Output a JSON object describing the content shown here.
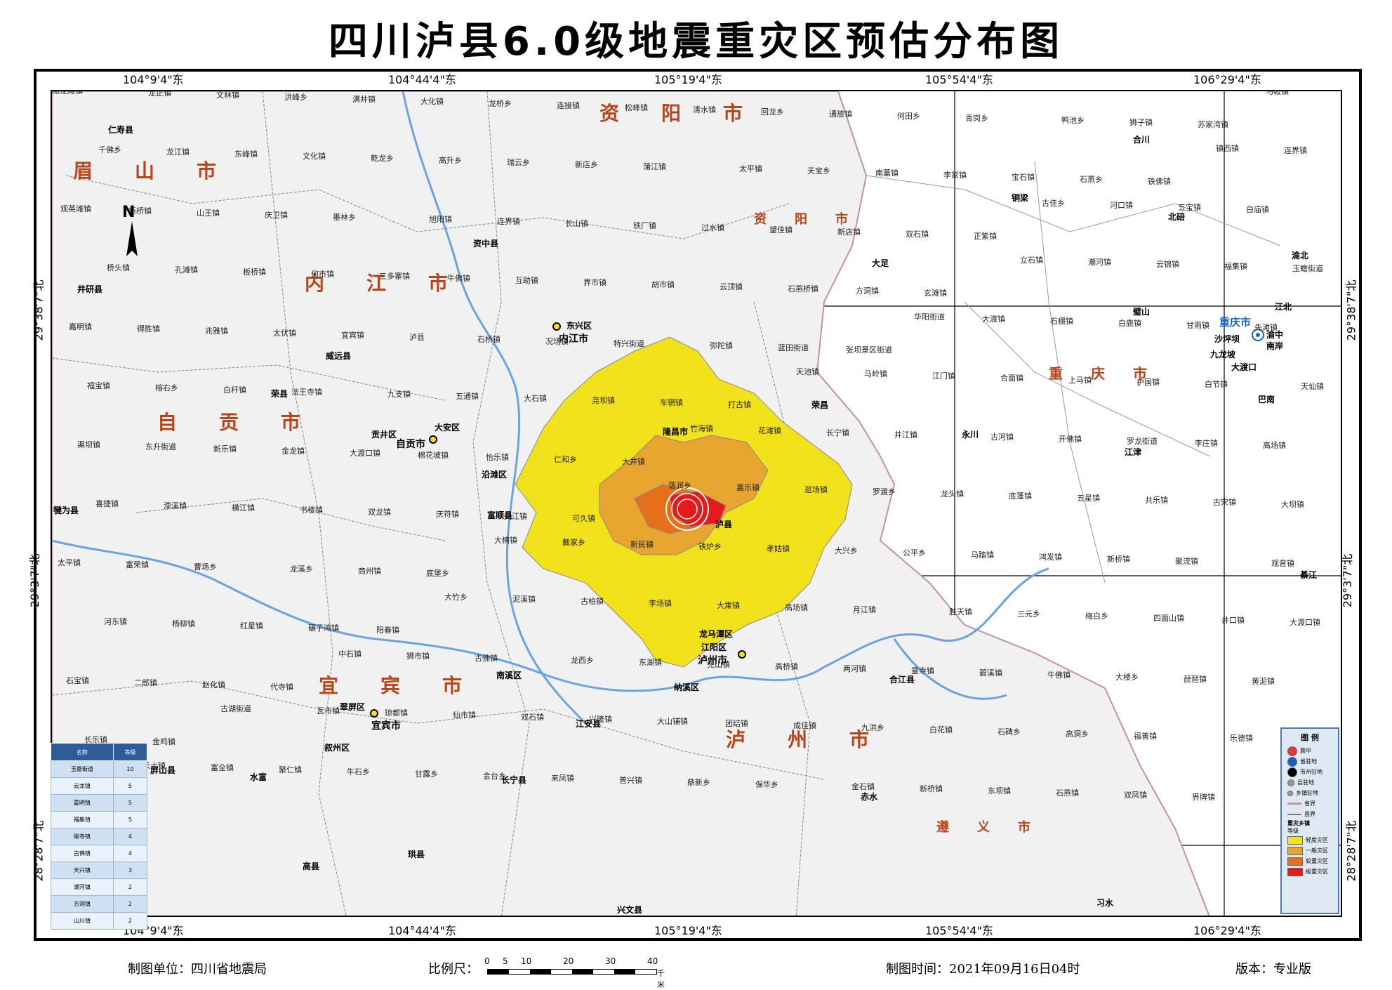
{
  "title": "四川泸县6.0级地震重灾区预估分布图",
  "coords": {
    "top": [
      "104°9'4\"东",
      "104°44'4\"东",
      "105°19'4\"东",
      "105°54'4\"东",
      "106°29'4\"东"
    ],
    "bottom": [
      "104°9'4\"东",
      "104°44'4\"东",
      "105°19'4\"东",
      "105°54'4\"东",
      "106°29'4\"东"
    ],
    "left": [
      "29°38'7\"北",
      "29°3'7\"北",
      "28°28'7\"北"
    ],
    "right": [
      "29°38'7\"北",
      "29°3'7\"北",
      "28°28'7\"北"
    ]
  },
  "north": "N",
  "regions": [
    "眉山市",
    "资阳市",
    "内江市",
    "自贡市",
    "宜宾市",
    "泸州市",
    "重庆市",
    "遵义市",
    "资阳市"
  ],
  "cities": [
    "内江市",
    "东兴区",
    "资中县",
    "威远县",
    "荣县",
    "自贡市",
    "贡井区",
    "大安区",
    "沿滩区",
    "富顺县",
    "隆昌市",
    "泸县",
    "龙马潭区",
    "江阳区",
    "泸州市",
    "纳溪区",
    "宜宾市",
    "翠屏区",
    "叙州区",
    "南溪区",
    "江安县",
    "长宁县",
    "高县",
    "珙县",
    "兴文县",
    "屏山县",
    "水富",
    "合江县",
    "赤水",
    "习水",
    "荣昌",
    "永川",
    "大足",
    "铜梁",
    "合川",
    "北碚",
    "璧山",
    "江津",
    "綦江",
    "巴南",
    "渝北",
    "江北",
    "渝中",
    "南岸",
    "沙坪坝",
    "九龙坡",
    "大渡口",
    "重庆市",
    "犍为县",
    "井研县",
    "仁寿县"
  ],
  "places": [
    "黑龙滩镇",
    "龙正镇",
    "文林镇",
    "洪峰乡",
    "满井镇",
    "大化镇",
    "龙桥乡",
    "连接镇",
    "松峰镇",
    "清水镇",
    "回龙乡",
    "通旅镇",
    "何田乡",
    "青岗乡",
    "鸭池乡",
    "狮子镇",
    "苏家湾镇",
    "马鞍镇",
    "千佛乡",
    "龙江镇",
    "东峰镇",
    "文化镇",
    "乾龙乡",
    "高升乡",
    "瑞云乡",
    "新店乡",
    "蒲江镇",
    "太平镇",
    "天宝乡",
    "南薰镇",
    "李家镇",
    "宝石镇",
    "石燕乡",
    "铁佛镇",
    "镇西镇",
    "连界镇",
    "观英滩镇",
    "新桥镇",
    "山王镇",
    "庆卫镇",
    "墨林乡",
    "旭阳镇",
    "连界镇",
    "长山镇",
    "铁厂镇",
    "过水镇",
    "望佳镇",
    "新店镇",
    "双石镇",
    "正紫镇",
    "古佳乡",
    "河口镇",
    "五宝镇",
    "白庙镇",
    "桥头镇",
    "孔滩镇",
    "板桥镇",
    "何市镇",
    "三多寨镇",
    "牛佛镇",
    "互助镇",
    "界市镇",
    "胡市镇",
    "云顶镇",
    "石燕桥镇",
    "方洞镇",
    "玄滩镇",
    "立石镇",
    "潮河镇",
    "云锦镇",
    "福集镇",
    "玉蟾街道",
    "嘉明镇",
    "得胜镇",
    "兆雅镇",
    "太伏镇",
    "宜宾镇",
    "泸县",
    "石桥镇",
    "况场镇",
    "特兴街道",
    "弥陀镇",
    "蓝田街道",
    "张坝景区街道",
    "华阳街道",
    "大渡镇",
    "石棚镇",
    "白鹿镇",
    "甘雨镇",
    "先滩镇",
    "福宝镇",
    "榕右乡",
    "白杆镇",
    "法王寺镇",
    "九支镇",
    "五通镇",
    "大石镇",
    "尧坝镇",
    "车辋镇",
    "打古镇",
    "天池镇",
    "马岭镇",
    "江门镇",
    "合面镇",
    "上马镇",
    "护国镇",
    "白节镇",
    "天仙镇",
    "渠坝镇",
    "东升街道",
    "新乐镇",
    "金龙镇",
    "大渡口镇",
    "棉花坡镇",
    "怡乐镇",
    "仁和乡",
    "大井镇",
    "竹海镇",
    "花滩镇",
    "长宁镇",
    "井江镇",
    "古河镇",
    "开佛镇",
    "罗龙街道",
    "李庄镇",
    "高场镇",
    "喜捷镇",
    "漆溪镇",
    "横江镇",
    "书楼镇",
    "双龙镇",
    "庆符镇",
    "文江镇",
    "可久镇",
    "落润乡",
    "嘉乐镇",
    "巡场镇",
    "罗渡乡",
    "龙头镇",
    "底蓬镇",
    "五星镇",
    "共乐镇",
    "古宋镇",
    "大坝镇",
    "太平镇",
    "富荣镇",
    "曹场乡",
    "龙溪乡",
    "商州镇",
    "底堡乡",
    "大楠镇",
    "戴家乡",
    "新民镇",
    "铁炉乡",
    "孝姑镇",
    "大兴乡",
    "公平乡",
    "马踏镇",
    "鸿发镇",
    "新桥镇",
    "聚流镇",
    "观音镇",
    "河东镇",
    "杨柳镇",
    "红星镇",
    "碾子湾镇",
    "阳春镇",
    "大竹乡",
    "泥溪镇",
    "古柏镇",
    "李场镇",
    "大乘镇",
    "高场镇",
    "月江镇",
    "胜天镇",
    "三元乡",
    "梅白乡",
    "四面山镇",
    "井口镇",
    "大渡口镇",
    "石宝镇",
    "二郎镇",
    "赵化镇",
    "代寺镇",
    "中石镇",
    "狮市镇",
    "古佛镇",
    "龙西乡",
    "东湖镇",
    "兜山镇",
    "高桥镇",
    "两河镇",
    "童寺镇",
    "碧溪镇",
    "牛佛镇",
    "大楼乡",
    "琵琶镇",
    "黄泥镇",
    "长乐镇",
    "金鸡镇",
    "古湖街道",
    "瓦市镇",
    "琼都镇",
    "仙市镇",
    "双石镇",
    "兴隆镇",
    "大山铺镇",
    "团结镇",
    "成佳镇",
    "九洪乡",
    "白花镇",
    "石碑乡",
    "高洞乡",
    "福善镇",
    "乐德镇",
    "观音镇",
    "新店乡",
    "长土镇",
    "富全镇",
    "聚仁镇",
    "牛石乡",
    "甘露乡",
    "金台乡",
    "来凤镇",
    "普兴镇",
    "鼎新乡",
    "保华乡",
    "金石镇",
    "新桥镇",
    "东坝镇",
    "石燕镇",
    "双凤镇",
    "界牌镇"
  ],
  "legend": {
    "title": "图 例",
    "items": [
      {
        "label": "震中",
        "color": "#e53935"
      },
      {
        "label": "省驻地",
        "color": "#1565c0"
      },
      {
        "label": "市州驻地",
        "color": "#000000"
      },
      {
        "label": "县驻地",
        "color": "#999999"
      },
      {
        "label": "乡镇驻地",
        "color": "#999999"
      },
      {
        "label": "省界",
        "color": "#c58fa8"
      },
      {
        "label": "县界",
        "color": "#777777"
      }
    ],
    "level_title": "重灾乡镇",
    "level_sub": "等级",
    "levels": [
      {
        "label": "轻度灾区",
        "color": "#f2e21b"
      },
      {
        "label": "一般灾区",
        "color": "#e8a530"
      },
      {
        "label": "较重灾区",
        "color": "#e86f1a"
      },
      {
        "label": "极重灾区",
        "color": "#e61a1a"
      }
    ]
  },
  "table": {
    "headers": [
      "名称",
      "等级"
    ],
    "rows": [
      [
        "玉蟾街道",
        "10"
      ],
      [
        "云龙镇",
        "5"
      ],
      [
        "嘉明镇",
        "5"
      ],
      [
        "福集镇",
        "5"
      ],
      [
        "喻寺镇",
        "4"
      ],
      [
        "古佛镇",
        "4"
      ],
      [
        "天兴镇",
        "3"
      ],
      [
        "潮河镇",
        "2"
      ],
      [
        "方洞镇",
        "2"
      ],
      [
        "山川镇",
        "2"
      ]
    ]
  },
  "footer": {
    "unit": "制图单位：四川省地震局",
    "scale_label": "比例尺：",
    "scale_ticks": [
      "0",
      "5",
      "10",
      "20",
      "30",
      "40"
    ],
    "scale_unit": "千米",
    "time": "制图时间：2021年09月16日04时",
    "version": "版本：专业版"
  }
}
